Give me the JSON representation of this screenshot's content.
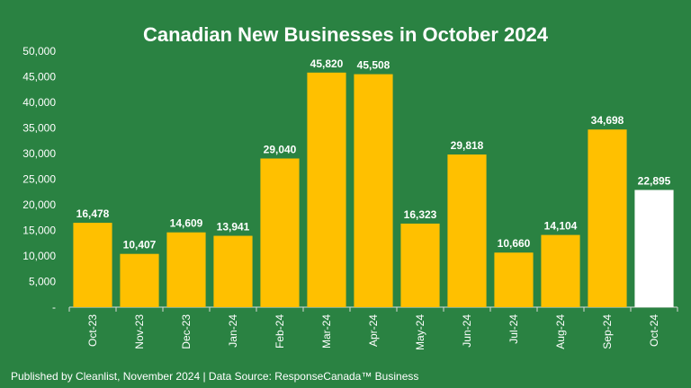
{
  "chart_data": {
    "type": "bar",
    "title": "Canadian New Businesses in October 2024",
    "categories": [
      "Oct-23",
      "Nov-23",
      "Dec-23",
      "Jan-24",
      "Feb-24",
      "Mar-24",
      "Apr-24",
      "May-24",
      "Jun-24",
      "Jul-24",
      "Aug-24",
      "Sep-24",
      "Oct-24"
    ],
    "values": [
      16478,
      10407,
      14609,
      13941,
      29040,
      45820,
      45508,
      16323,
      29818,
      10660,
      14104,
      34698,
      22895
    ],
    "value_labels": [
      "16,478",
      "10,407",
      "14,609",
      "13,941",
      "29,040",
      "45,820",
      "45,508",
      "16,323",
      "29,818",
      "10,660",
      "14,104",
      "34,698",
      "22,895"
    ],
    "ylim": [
      0,
      50000
    ],
    "y_ticks": [
      0,
      5000,
      10000,
      15000,
      20000,
      25000,
      30000,
      35000,
      40000,
      45000,
      50000
    ],
    "y_tick_labels": [
      "-",
      "5,000",
      "10,000",
      "15,000",
      "20,000",
      "25,000",
      "30,000",
      "35,000",
      "40,000",
      "45,000",
      "50,000"
    ],
    "grid": false,
    "legend": "none",
    "colors": {
      "background": "#2a8242",
      "bar": "#ffc000",
      "highlight_bar": "#ffffff",
      "text": "#ffffff"
    },
    "highlight_index": 12
  },
  "footer": {
    "note": "Published by Cleanlist, November 2024 | Data Source: ResponseCanada™ Business"
  }
}
